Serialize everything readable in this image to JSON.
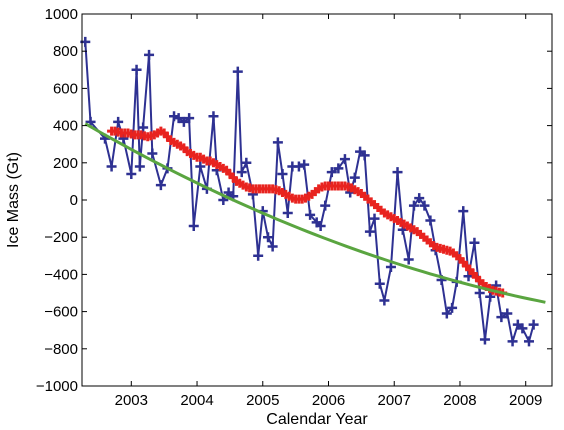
{
  "chart_data": {
    "type": "line",
    "title": "",
    "xlabel": "Calendar Year",
    "ylabel": "Ice Mass (Gt)",
    "xlim": [
      2002.25,
      2009.4
    ],
    "ylim": [
      -1000,
      1000
    ],
    "xticks": [
      2003,
      2004,
      2005,
      2006,
      2007,
      2008,
      2009
    ],
    "xtick_labels": [
      "2003",
      "2004",
      "2005",
      "2006",
      "2007",
      "2008",
      "2009"
    ],
    "yticks": [
      -1000,
      -800,
      -600,
      -400,
      -200,
      0,
      200,
      400,
      600,
      800,
      1000
    ],
    "ytick_labels": [
      "−1000",
      "−800",
      "−600",
      "−400",
      "−200",
      "0",
      "200",
      "400",
      "600",
      "800",
      "1000"
    ],
    "grid": false,
    "legend": "none",
    "series": [
      {
        "color": "#2e3192",
        "marker": "plus",
        "x": [
          2002.3,
          2002.38,
          2002.6,
          2002.7,
          2002.8,
          2002.88,
          2003.0,
          2003.08,
          2003.13,
          2003.18,
          2003.27,
          2003.32,
          2003.45,
          2003.55,
          2003.65,
          2003.72,
          2003.8,
          2003.88,
          2003.95,
          2004.05,
          2004.15,
          2004.25,
          2004.3,
          2004.4,
          2004.48,
          2004.55,
          2004.62,
          2004.68,
          2004.75,
          2004.85,
          2004.93,
          2005.0,
          2005.08,
          2005.15,
          2005.23,
          2005.3,
          2005.38,
          2005.45,
          2005.55,
          2005.63,
          2005.72,
          2005.82,
          2005.88,
          2005.95,
          2006.05,
          2006.15,
          2006.25,
          2006.33,
          2006.4,
          2006.48,
          2006.55,
          2006.63,
          2006.7,
          2006.78,
          2006.85,
          2006.95,
          2007.05,
          2007.13,
          2007.22,
          2007.3,
          2007.38,
          2007.46,
          2007.55,
          2007.63,
          2007.72,
          2007.8,
          2007.88,
          2007.95,
          2008.05,
          2008.13,
          2008.22,
          2008.3,
          2008.38,
          2008.46,
          2008.55,
          2008.63,
          2008.72,
          2008.8,
          2008.88,
          2008.95,
          2009.05,
          2009.12
        ],
        "y": [
          850,
          420,
          330,
          180,
          420,
          330,
          140,
          700,
          180,
          390,
          780,
          250,
          80,
          170,
          450,
          440,
          420,
          440,
          -140,
          180,
          60,
          450,
          160,
          0,
          40,
          20,
          690,
          150,
          200,
          30,
          -300,
          -60,
          -200,
          -250,
          310,
          140,
          -70,
          180,
          180,
          190,
          -80,
          -120,
          -140,
          -30,
          150,
          170,
          220,
          40,
          120,
          260,
          240,
          -170,
          -100,
          -450,
          -540,
          -360,
          150,
          -160,
          -320,
          -30,
          10,
          -30,
          -110,
          -270,
          -430,
          -610,
          -580,
          -440,
          -60,
          -410,
          -230,
          -500,
          -750,
          -520,
          -460,
          -630,
          -610,
          -760,
          -670,
          -690,
          -760,
          -670
        ]
      },
      {
        "color": "#e8231f",
        "marker": "plus",
        "x": [
          2002.7,
          2002.75,
          2002.8,
          2002.85,
          2002.9,
          2002.95,
          2003.0,
          2003.05,
          2003.1,
          2003.15,
          2003.2,
          2003.25,
          2003.3,
          2003.35,
          2003.4,
          2003.45,
          2003.5,
          2003.55,
          2003.6,
          2003.65,
          2003.7,
          2003.75,
          2003.8,
          2003.85,
          2003.9,
          2003.95,
          2004.0,
          2004.05,
          2004.1,
          2004.15,
          2004.2,
          2004.25,
          2004.3,
          2004.35,
          2004.4,
          2004.45,
          2004.5,
          2004.55,
          2004.6,
          2004.65,
          2004.7,
          2004.75,
          2004.8,
          2004.85,
          2004.9,
          2004.95,
          2005.0,
          2005.05,
          2005.1,
          2005.15,
          2005.2,
          2005.25,
          2005.3,
          2005.35,
          2005.4,
          2005.45,
          2005.5,
          2005.55,
          2005.6,
          2005.65,
          2005.7,
          2005.75,
          2005.8,
          2005.85,
          2005.9,
          2005.95,
          2006.0,
          2006.05,
          2006.1,
          2006.15,
          2006.2,
          2006.25,
          2006.3,
          2006.35,
          2006.4,
          2006.45,
          2006.5,
          2006.55,
          2006.6,
          2006.65,
          2006.7,
          2006.75,
          2006.8,
          2006.85,
          2006.9,
          2006.95,
          2007.0,
          2007.05,
          2007.1,
          2007.15,
          2007.2,
          2007.25,
          2007.3,
          2007.35,
          2007.4,
          2007.45,
          2007.5,
          2007.55,
          2007.6,
          2007.65,
          2007.7,
          2007.75,
          2007.8,
          2007.85,
          2007.9,
          2007.95,
          2008.0,
          2008.05,
          2008.1,
          2008.15,
          2008.2,
          2008.25,
          2008.3,
          2008.35,
          2008.4,
          2008.45,
          2008.5,
          2008.55,
          2008.6,
          2008.65
        ],
        "y": [
          370,
          370,
          365,
          360,
          360,
          360,
          355,
          350,
          350,
          350,
          345,
          340,
          345,
          350,
          360,
          370,
          360,
          340,
          320,
          310,
          300,
          290,
          280,
          260,
          250,
          240,
          230,
          230,
          220,
          210,
          210,
          200,
          190,
          180,
          170,
          160,
          140,
          120,
          100,
          90,
          80,
          70,
          65,
          60,
          60,
          60,
          60,
          60,
          60,
          60,
          55,
          50,
          40,
          30,
          20,
          10,
          5,
          5,
          5,
          10,
          20,
          30,
          45,
          60,
          70,
          75,
          75,
          75,
          75,
          75,
          75,
          75,
          70,
          65,
          55,
          45,
          35,
          20,
          5,
          -10,
          -25,
          -40,
          -55,
          -70,
          -80,
          -90,
          -100,
          -110,
          -120,
          -130,
          -140,
          -150,
          -160,
          -170,
          -185,
          -200,
          -215,
          -230,
          -245,
          -255,
          -260,
          -265,
          -270,
          -275,
          -285,
          -300,
          -315,
          -335,
          -355,
          -375,
          -395,
          -415,
          -435,
          -450,
          -465,
          -475,
          -485,
          -490,
          -495,
          -500
        ]
      },
      {
        "color": "#5aa540",
        "marker": "none",
        "x": [
          2002.3,
          2009.3
        ],
        "y": [
          410,
          -550
        ],
        "curvature": -0.0095
      }
    ]
  }
}
